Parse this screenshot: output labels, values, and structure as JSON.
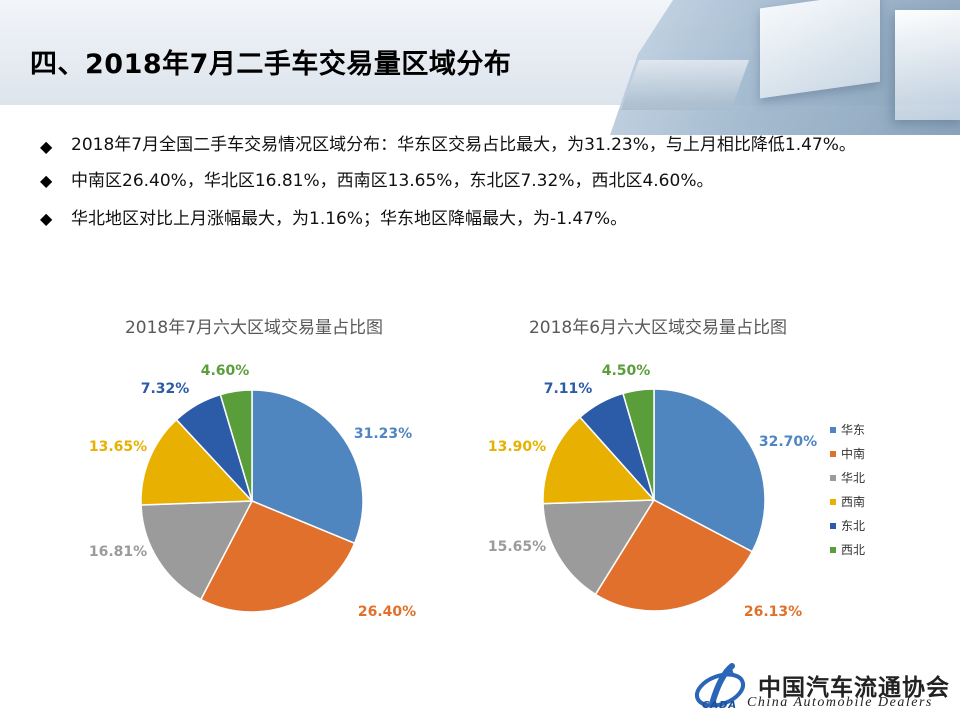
{
  "title": "四、2018年7月二手车交易量区域分布",
  "bullets": [
    "2018年7月全国二手车交易情况区域分布：华东区交易占比最大，为31.23%，与上月相比降低1.47%。",
    "中南区26.40%，华北区16.81%，西南区13.65%，东北区7.32%，西北区4.60%。",
    "华北地区对比上月涨幅最大，为1.16%；华东地区降幅最大，为-1.47%。"
  ],
  "bullet_symbol": "◆",
  "colors": {
    "华东": "#4f86c0",
    "中南": "#e0702b",
    "华北": "#9b9b9b",
    "西南": "#e8b000",
    "东北": "#2c5ba8",
    "西北": "#5a9e3c"
  },
  "chart_data": [
    {
      "type": "pie",
      "title": "2018年7月六大区域交易量占比图",
      "categories": [
        "华东",
        "中南",
        "华北",
        "西南",
        "东北",
        "西北"
      ],
      "values": [
        31.23,
        26.4,
        16.81,
        13.65,
        7.32,
        4.6
      ],
      "labels": [
        "31.23%",
        "26.40%",
        "16.81%",
        "13.65%",
        "7.32%",
        "4.60%"
      ]
    },
    {
      "type": "pie",
      "title": "2018年6月六大区域交易量占比图",
      "categories": [
        "华东",
        "中南",
        "华北",
        "西南",
        "东北",
        "西北"
      ],
      "values": [
        32.7,
        26.13,
        15.65,
        13.9,
        7.11,
        4.5
      ],
      "labels": [
        "32.70%",
        "26.13%",
        "15.65%",
        "13.90%",
        "7.11%",
        "4.50%"
      ],
      "legend": [
        "华东",
        "中南",
        "华北",
        "西南",
        "东北",
        "西北"
      ]
    }
  ],
  "footer": {
    "org_cn": "中国汽车流通协会",
    "org_en": "China  Automobile Dealers",
    "org_abbr": "CADA"
  }
}
